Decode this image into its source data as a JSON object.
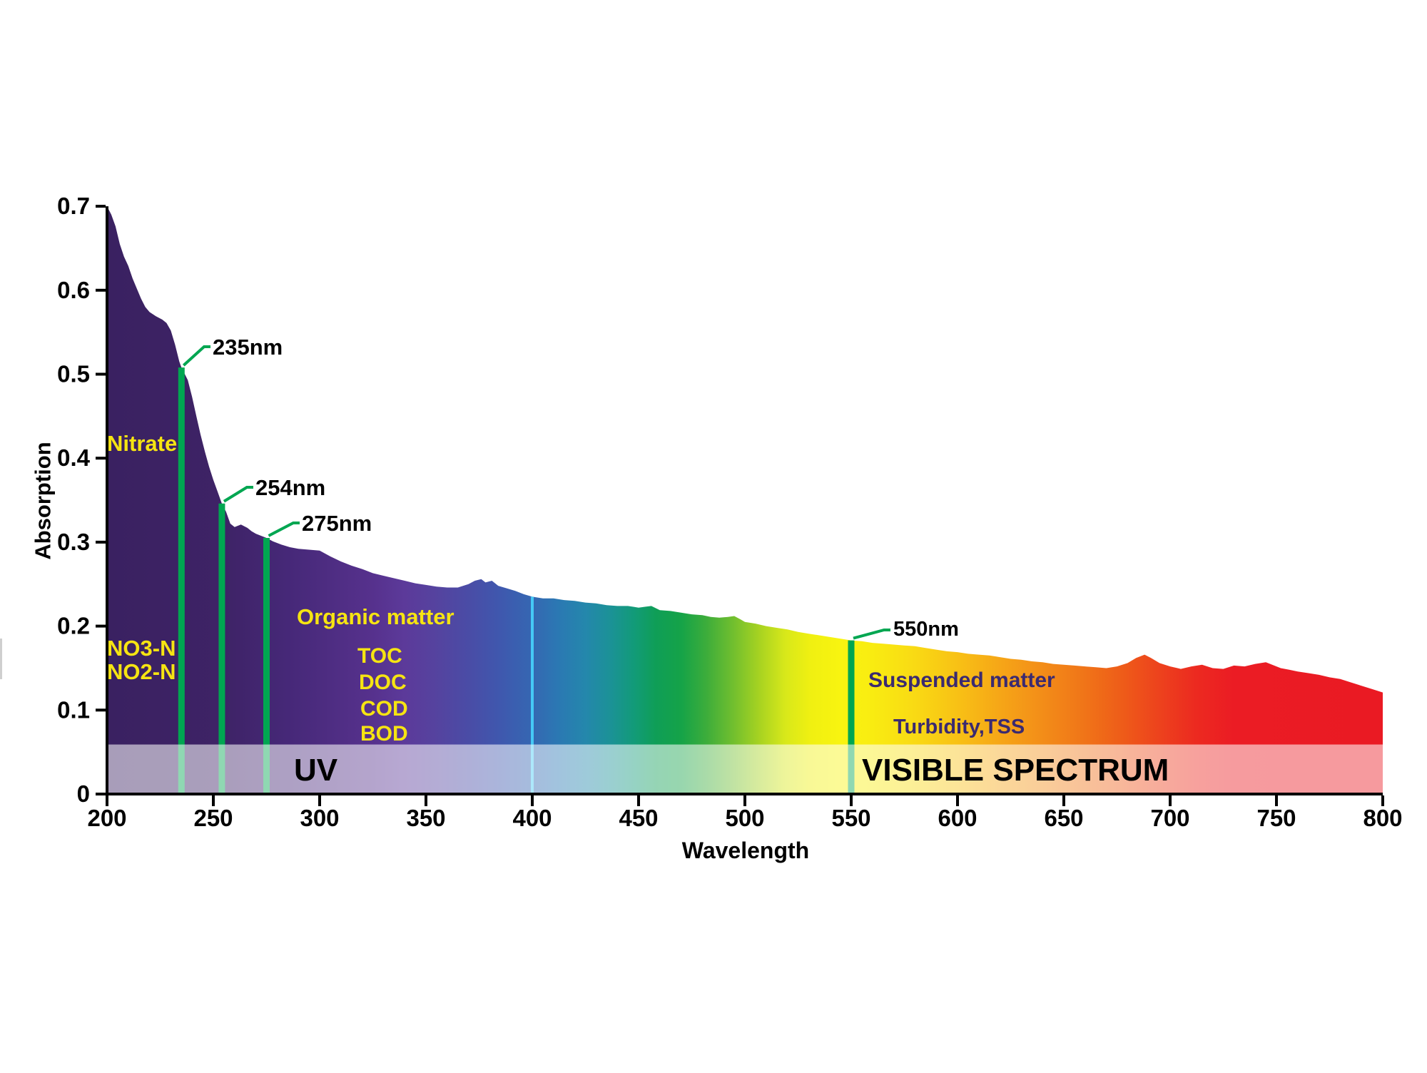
{
  "axes": {
    "x_label": "Wavelength",
    "y_label": "Absorption"
  },
  "labels": {
    "nitrate": "Nitrate",
    "no3": "NO3-N",
    "no2": "NO2-N",
    "organic_matter": "Organic matter",
    "toc": "TOC",
    "doc": "DOC",
    "cod": "COD",
    "bod": "BOD",
    "suspended_matter": "Suspended matter",
    "turbidity": "Turbidity,TSS",
    "uv_band": "UV",
    "visible_band": "VISIBLE SPECTRUM",
    "marker_235": "235nm",
    "marker_254": "254nm",
    "marker_275": "275nm",
    "marker_550": "550nm"
  },
  "colors": {
    "label_yellow": "#f6e412",
    "label_navy": "#3b2a70",
    "label_black": "#000000",
    "marker_green": "#00a651",
    "reference_cyan": "#45c8f5",
    "axis_black": "#000000"
  },
  "chart_data": {
    "type": "area",
    "title": "",
    "xlabel": "Wavelength",
    "ylabel": "Absorption",
    "xlim": [
      200,
      800
    ],
    "ylim": [
      0,
      0.7
    ],
    "grid": false,
    "x_ticks": [
      200,
      250,
      300,
      350,
      400,
      450,
      500,
      550,
      600,
      650,
      700,
      750,
      800
    ],
    "y_ticks": [
      0,
      0.1,
      0.2,
      0.3,
      0.4,
      0.5,
      0.6,
      0.7
    ],
    "y_tick_labels": [
      "0",
      "0.1",
      "0.2",
      "0.3",
      "0.4",
      "0.5",
      "0.6",
      "0.7"
    ],
    "series": [
      {
        "name": "absorption-spectrum",
        "x": [
          200,
          202,
          204,
          206,
          208,
          210,
          212,
          214,
          216,
          218,
          220,
          223,
          226,
          228,
          230,
          232,
          234,
          235,
          238,
          240,
          242,
          244,
          246,
          248,
          250,
          252,
          254,
          256,
          258,
          260,
          263,
          266,
          268,
          270,
          272,
          275,
          278,
          282,
          286,
          290,
          295,
          300,
          305,
          310,
          315,
          320,
          325,
          330,
          335,
          340,
          345,
          350,
          355,
          360,
          365,
          370,
          373,
          376,
          378,
          381,
          384,
          388,
          392,
          396,
          400,
          405,
          410,
          415,
          420,
          425,
          430,
          435,
          440,
          445,
          450,
          453,
          456,
          460,
          465,
          470,
          475,
          480,
          484,
          488,
          492,
          495,
          498,
          500,
          505,
          510,
          515,
          520,
          525,
          530,
          535,
          540,
          545,
          550,
          555,
          560,
          565,
          570,
          575,
          580,
          585,
          590,
          595,
          600,
          605,
          610,
          615,
          620,
          625,
          630,
          635,
          640,
          645,
          650,
          655,
          660,
          665,
          670,
          675,
          680,
          684,
          688,
          691,
          695,
          700,
          705,
          710,
          715,
          720,
          725,
          730,
          735,
          740,
          745,
          748,
          752,
          756,
          760,
          765,
          770,
          775,
          780,
          785,
          790,
          795,
          800
        ],
        "y": [
          0.7,
          0.69,
          0.676,
          0.655,
          0.64,
          0.629,
          0.614,
          0.602,
          0.59,
          0.58,
          0.574,
          0.569,
          0.565,
          0.561,
          0.552,
          0.535,
          0.515,
          0.508,
          0.493,
          0.473,
          0.45,
          0.428,
          0.408,
          0.39,
          0.374,
          0.36,
          0.346,
          0.336,
          0.322,
          0.318,
          0.321,
          0.317,
          0.313,
          0.31,
          0.308,
          0.305,
          0.301,
          0.297,
          0.294,
          0.292,
          0.291,
          0.29,
          0.283,
          0.277,
          0.272,
          0.268,
          0.263,
          0.26,
          0.257,
          0.254,
          0.251,
          0.249,
          0.247,
          0.246,
          0.246,
          0.25,
          0.254,
          0.256,
          0.252,
          0.254,
          0.248,
          0.245,
          0.242,
          0.238,
          0.235,
          0.233,
          0.233,
          0.231,
          0.23,
          0.228,
          0.227,
          0.225,
          0.224,
          0.224,
          0.222,
          0.223,
          0.224,
          0.219,
          0.218,
          0.216,
          0.214,
          0.213,
          0.211,
          0.21,
          0.211,
          0.212,
          0.208,
          0.205,
          0.203,
          0.2,
          0.198,
          0.196,
          0.193,
          0.191,
          0.189,
          0.187,
          0.185,
          0.183,
          0.182,
          0.18,
          0.179,
          0.178,
          0.177,
          0.176,
          0.174,
          0.172,
          0.17,
          0.169,
          0.167,
          0.166,
          0.165,
          0.163,
          0.161,
          0.16,
          0.158,
          0.157,
          0.155,
          0.154,
          0.153,
          0.152,
          0.151,
          0.15,
          0.152,
          0.156,
          0.162,
          0.166,
          0.162,
          0.156,
          0.152,
          0.149,
          0.152,
          0.154,
          0.15,
          0.149,
          0.153,
          0.152,
          0.155,
          0.157,
          0.154,
          0.15,
          0.148,
          0.146,
          0.144,
          0.142,
          0.139,
          0.137,
          0.133,
          0.129,
          0.125,
          0.121
        ]
      }
    ],
    "markers": [
      {
        "label": "235nm",
        "wavelength": 235,
        "value": 0.508,
        "color": "#00a651"
      },
      {
        "label": "254nm",
        "wavelength": 254,
        "value": 0.346,
        "color": "#00a651"
      },
      {
        "label": "275nm",
        "wavelength": 275,
        "value": 0.305,
        "color": "#00a651"
      },
      {
        "label": "550nm",
        "wavelength": 550,
        "value": 0.183,
        "color": "#00a651"
      }
    ],
    "reference_line": {
      "wavelength": 400,
      "value": 0.235,
      "color": "#45c8f5"
    },
    "band": {
      "top_value": 0.059,
      "overlay_color": "#ffffff",
      "overlay_opacity": 0.56,
      "uv_label": "UV",
      "visible_label": "VISIBLE SPECTRUM",
      "uv_range": [
        200,
        400
      ],
      "visible_range": [
        400,
        800
      ]
    },
    "spectrum_gradient": [
      {
        "nm": 200,
        "color": "#3a2161"
      },
      {
        "nm": 255,
        "color": "#3e2366"
      },
      {
        "nm": 285,
        "color": "#462878"
      },
      {
        "nm": 305,
        "color": "#4e2d82"
      },
      {
        "nm": 325,
        "color": "#56318d"
      },
      {
        "nm": 340,
        "color": "#5c3a9a"
      },
      {
        "nm": 355,
        "color": "#55439f"
      },
      {
        "nm": 370,
        "color": "#4a4ca6"
      },
      {
        "nm": 385,
        "color": "#3f58ae"
      },
      {
        "nm": 400,
        "color": "#3567b2"
      },
      {
        "nm": 412,
        "color": "#2b78b3"
      },
      {
        "nm": 425,
        "color": "#2487ac"
      },
      {
        "nm": 437,
        "color": "#1b9296"
      },
      {
        "nm": 448,
        "color": "#129b78"
      },
      {
        "nm": 458,
        "color": "#0f9e57"
      },
      {
        "nm": 470,
        "color": "#15a348"
      },
      {
        "nm": 482,
        "color": "#3dad3b"
      },
      {
        "nm": 494,
        "color": "#6fbe2f"
      },
      {
        "nm": 507,
        "color": "#a8d321"
      },
      {
        "nm": 519,
        "color": "#d8e81a"
      },
      {
        "nm": 531,
        "color": "#f0f011"
      },
      {
        "nm": 545,
        "color": "#f8f410"
      },
      {
        "nm": 560,
        "color": "#f9ec11"
      },
      {
        "nm": 580,
        "color": "#f9da14"
      },
      {
        "nm": 600,
        "color": "#f8c115"
      },
      {
        "nm": 620,
        "color": "#f6a617"
      },
      {
        "nm": 640,
        "color": "#f38d18"
      },
      {
        "nm": 660,
        "color": "#f07418"
      },
      {
        "nm": 678,
        "color": "#ee5b19"
      },
      {
        "nm": 695,
        "color": "#ed421d"
      },
      {
        "nm": 712,
        "color": "#ec2a20"
      },
      {
        "nm": 730,
        "color": "#eb1c24"
      },
      {
        "nm": 800,
        "color": "#ea1a23"
      }
    ],
    "annotations": [
      {
        "text": "Nitrate",
        "color": "yellow"
      },
      {
        "text": "NO3-N",
        "color": "yellow"
      },
      {
        "text": "NO2-N",
        "color": "yellow"
      },
      {
        "text": "Organic matter",
        "color": "yellow"
      },
      {
        "text": "TOC",
        "color": "yellow"
      },
      {
        "text": "DOC",
        "color": "yellow"
      },
      {
        "text": "COD",
        "color": "yellow"
      },
      {
        "text": "BOD",
        "color": "yellow"
      },
      {
        "text": "Suspended matter",
        "color": "navy"
      },
      {
        "text": "Turbidity,TSS",
        "color": "navy"
      },
      {
        "text": "UV",
        "color": "black"
      },
      {
        "text": "VISIBLE SPECTRUM",
        "color": "black"
      }
    ]
  }
}
